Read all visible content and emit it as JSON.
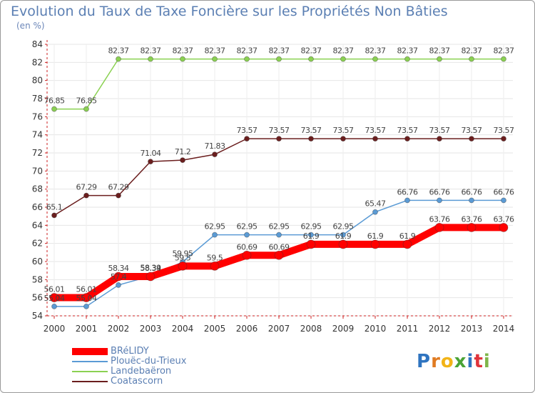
{
  "title": "Evolution du Taux de Taxe Foncière sur les Propriétés Non Bâties",
  "unit_label": "(en %)",
  "logo": {
    "text": "Proxiti",
    "letter_colors": [
      "#2f74c0",
      "#e07b22",
      "#f2b418",
      "#4aa336",
      "#2f74c0",
      "#e0343c",
      "#7fb54a"
    ]
  },
  "chart_data": {
    "type": "line",
    "title": "Evolution du Taux de Taxe Foncière sur les Propriétés Non Bâties",
    "ylabel": "(en %)",
    "xlabel": "",
    "ylim": [
      54,
      84
    ],
    "yticks": [
      54,
      56,
      58,
      60,
      62,
      64,
      66,
      68,
      70,
      72,
      74,
      76,
      78,
      80,
      82,
      84
    ],
    "categories": [
      "2000",
      "2001",
      "2002",
      "2003",
      "2004",
      "2005",
      "2006",
      "2007",
      "2008",
      "2009",
      "2010",
      "2011",
      "2012",
      "2013",
      "2014"
    ],
    "grid": true,
    "legend_position": "bottom-left",
    "series": [
      {
        "name": "Coatascorn",
        "color": "#6b1e1e",
        "values": [
          65.1,
          67.29,
          67.29,
          71.04,
          71.2,
          71.83,
          73.57,
          73.57,
          73.57,
          73.57,
          73.57,
          73.57,
          73.57,
          73.57,
          73.57
        ],
        "labels": [
          "65.1",
          "67.29",
          "67.29",
          "71.04",
          "71.2",
          "71.83",
          "73.57",
          "73.57",
          "73.57",
          "73.57",
          "73.57",
          "73.57",
          "73.57",
          "73.57",
          "73.57"
        ]
      },
      {
        "name": "Landebaëron",
        "color": "#8bd152",
        "values": [
          76.85,
          76.85,
          82.37,
          82.37,
          82.37,
          82.37,
          82.37,
          82.37,
          82.37,
          82.37,
          82.37,
          82.37,
          82.37,
          82.37,
          82.37
        ],
        "labels": [
          "76.85",
          "76.85",
          "82.37",
          "82.37",
          "82.37",
          "82.37",
          "82.37",
          "82.37",
          "82.37",
          "82.37",
          "82.37",
          "82.37",
          "82.37",
          "82.37",
          "82.37"
        ]
      },
      {
        "name": "Plouëc-du-Trieux",
        "color": "#5b9bd5",
        "values": [
          55.04,
          55.04,
          57.4,
          58.39,
          59.95,
          62.95,
          62.95,
          62.95,
          62.95,
          62.95,
          65.47,
          66.76,
          66.76,
          66.76,
          66.76
        ],
        "labels": [
          "55.04",
          "55.04",
          "57.4",
          "58.39",
          "59.95",
          "62.95",
          "62.95",
          "62.95",
          "62.95",
          "62.95",
          "65.47",
          "66.76",
          "66.76",
          "66.76",
          "66.76"
        ]
      },
      {
        "name": "BRéLIDY",
        "color": "#ff0000",
        "values": [
          56.01,
          56.01,
          58.34,
          58.34,
          59.5,
          59.5,
          60.69,
          60.69,
          61.9,
          61.9,
          61.9,
          61.9,
          63.76,
          63.76,
          63.76
        ],
        "labels": [
          "56.01",
          "56.01",
          "58.34",
          "58.34",
          "59.5",
          "59.5",
          "60.69",
          "60.69",
          "61.9",
          "61.9",
          "61.9",
          "61.9",
          "63.76",
          "63.76",
          "63.76"
        ]
      }
    ],
    "legend": [
      "BRéLIDY",
      "Plouëc-du-Trieux",
      "Landebaëron",
      "Coatascorn"
    ]
  }
}
